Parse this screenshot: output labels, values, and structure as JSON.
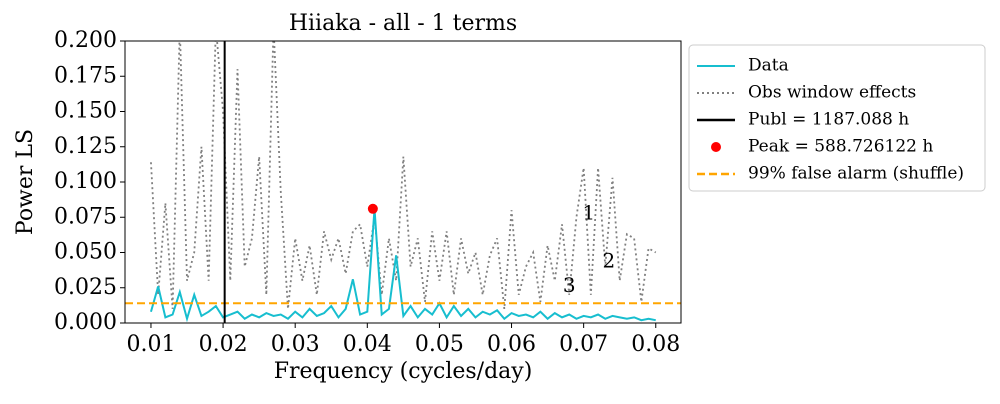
{
  "chart_data": {
    "type": "line",
    "title": "Hiiaka - all - 1 terms",
    "xlabel": "Frequency (cycles/day)",
    "ylabel": "Power LS",
    "xlim": [
      0.0064,
      0.0835
    ],
    "ylim": [
      0,
      0.2
    ],
    "xticks": [
      0.01,
      0.02,
      0.03,
      0.04,
      0.05,
      0.06,
      0.07,
      0.08
    ],
    "yticks": [
      {
        "value": 0,
        "label": "0.000"
      },
      {
        "value": 0.025,
        "label": "0.025"
      },
      {
        "value": 0.05,
        "label": "0.050"
      },
      {
        "value": 0.075,
        "label": "0.075"
      },
      {
        "value": 0.1,
        "label": "0.100"
      },
      {
        "value": 0.125,
        "label": "0.125"
      },
      {
        "value": 0.15,
        "label": "0.150"
      },
      {
        "value": 0.175,
        "label": "0.175"
      },
      {
        "value": 0.2,
        "label": "0.200"
      }
    ],
    "x": [
      0.01,
      0.011,
      0.012,
      0.013,
      0.014,
      0.015,
      0.016,
      0.017,
      0.018,
      0.019,
      0.02,
      0.021,
      0.022,
      0.023,
      0.024,
      0.025,
      0.026,
      0.027,
      0.028,
      0.029,
      0.03,
      0.031,
      0.032,
      0.033,
      0.034,
      0.035,
      0.036,
      0.037,
      0.038,
      0.039,
      0.04,
      0.041,
      0.042,
      0.043,
      0.044,
      0.045,
      0.046,
      0.047,
      0.048,
      0.049,
      0.05,
      0.051,
      0.052,
      0.053,
      0.054,
      0.055,
      0.056,
      0.057,
      0.058,
      0.059,
      0.06,
      0.061,
      0.062,
      0.063,
      0.064,
      0.065,
      0.066,
      0.067,
      0.068,
      0.069,
      0.07,
      0.071,
      0.072,
      0.073,
      0.074,
      0.075,
      0.076,
      0.077,
      0.078,
      0.079,
      0.08
    ],
    "series": [
      {
        "name": "Data",
        "color": "#17becf",
        "style": "solid",
        "values": [
          0.008,
          0.026,
          0.004,
          0.006,
          0.022,
          0.003,
          0.02,
          0.005,
          0.008,
          0.012,
          0.004,
          0.006,
          0.008,
          0.003,
          0.006,
          0.004,
          0.007,
          0.005,
          0.006,
          0.003,
          0.008,
          0.004,
          0.01,
          0.005,
          0.007,
          0.012,
          0.004,
          0.01,
          0.031,
          0.006,
          0.008,
          0.081,
          0.006,
          0.01,
          0.048,
          0.005,
          0.012,
          0.004,
          0.01,
          0.006,
          0.014,
          0.004,
          0.012,
          0.005,
          0.01,
          0.004,
          0.008,
          0.006,
          0.009,
          0.003,
          0.007,
          0.005,
          0.006,
          0.004,
          0.008,
          0.003,
          0.007,
          0.004,
          0.006,
          0.003,
          0.005,
          0.004,
          0.006,
          0.003,
          0.005,
          0.004,
          0.003,
          0.004,
          0.002,
          0.003,
          0.002
        ]
      },
      {
        "name": "Obs window effects",
        "color": "#808080",
        "style": "dotted",
        "values": [
          0.114,
          0.02,
          0.085,
          0.01,
          0.21,
          0.03,
          0.05,
          0.125,
          0.03,
          0.21,
          0.15,
          0.03,
          0.18,
          0.04,
          0.06,
          0.118,
          0.02,
          0.21,
          0.093,
          0.01,
          0.06,
          0.03,
          0.055,
          0.02,
          0.065,
          0.045,
          0.06,
          0.035,
          0.065,
          0.07,
          0.04,
          0.075,
          0.02,
          0.06,
          0.03,
          0.118,
          0.04,
          0.06,
          0.015,
          0.065,
          0.03,
          0.065,
          0.02,
          0.06,
          0.035,
          0.05,
          0.02,
          0.048,
          0.06,
          0.01,
          0.08,
          0.02,
          0.04,
          0.05,
          0.015,
          0.055,
          0.03,
          0.07,
          0.02,
          0.075,
          0.11,
          0.02,
          0.11,
          0.04,
          0.103,
          0.03,
          0.063,
          0.06,
          0.015,
          0.053,
          0.05
        ]
      }
    ],
    "vlines": [
      {
        "name": "Publ = 1187.088 h",
        "x": 0.02022,
        "color": "#000000"
      }
    ],
    "points": [
      {
        "name": "Peak = 588.726122 h",
        "x": 0.04077,
        "y": 0.081,
        "color": "#ff0000"
      }
    ],
    "hlines": [
      {
        "name": "99% false alarm (shuffle)",
        "y": 0.014,
        "color": "#ffa500"
      }
    ],
    "annotations": [
      {
        "text": "1",
        "x": 0.0707,
        "y": 0.0773
      },
      {
        "text": "2",
        "x": 0.0735,
        "y": 0.0433
      },
      {
        "text": "3",
        "x": 0.068,
        "y": 0.026
      }
    ]
  }
}
